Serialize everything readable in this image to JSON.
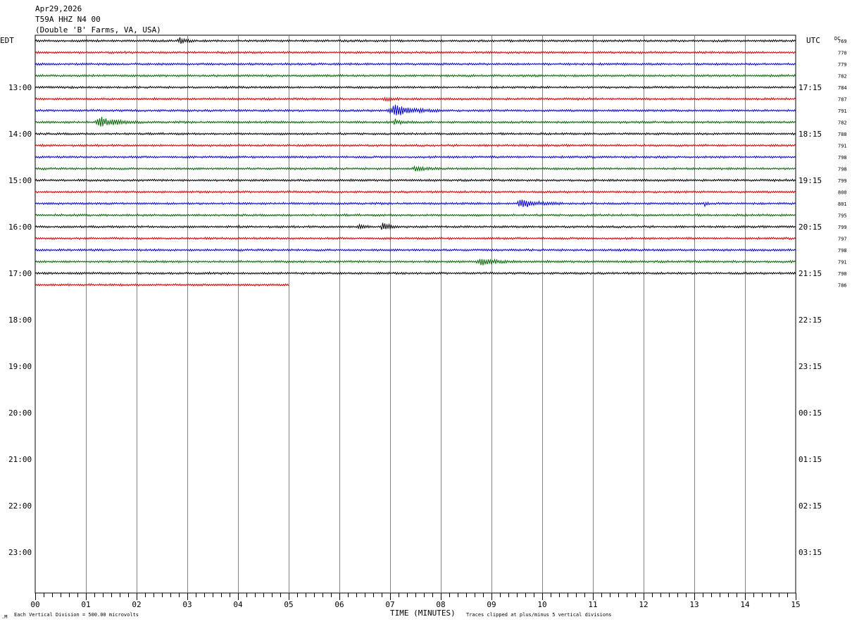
{
  "header": {
    "date": "Apr29,2026",
    "station": "T59A HHZ N4 00",
    "location": "(Double 'B' Farms, VA, USA)"
  },
  "labels": {
    "left_zone": "EDT",
    "right_zone": "UTC",
    "dc_header": "DC",
    "x_title": "TIME (MINUTES)",
    "scale_note": "Each Vertical Division =  500.00 microvolts",
    "clip_note": "Traces clipped at plus/minus 5 vertical divisions"
  },
  "colors": {
    "trace_cycle": [
      "#000000",
      "#cc0000",
      "#0000cc",
      "#006600"
    ],
    "grid": "#808080",
    "frame": "#000000"
  },
  "chart_data": {
    "type": "line",
    "description_kind": "helicorder",
    "minutes_per_line": 15,
    "x_ticks": [
      "00",
      "01",
      "02",
      "03",
      "04",
      "05",
      "06",
      "07",
      "08",
      "09",
      "10",
      "11",
      "12",
      "13",
      "14",
      "15"
    ],
    "xlim": [
      0,
      15
    ],
    "left_hour_labels": [
      "13:00",
      "14:00",
      "15:00",
      "16:00",
      "17:00",
      "18:00",
      "19:00",
      "20:00",
      "21:00",
      "22:00",
      "23:00"
    ],
    "right_hour_labels": [
      "17:15",
      "18:15",
      "19:15",
      "20:15",
      "21:15",
      "22:15",
      "23:15",
      "00:15",
      "01:15",
      "02:15",
      "03:15"
    ],
    "total_rows": 48,
    "traces": [
      {
        "row": 0,
        "dc": "769",
        "end_minute": 15,
        "events": [
          {
            "minute": 2.85,
            "amplitude": 2.2,
            "duration": 0.3
          }
        ]
      },
      {
        "row": 1,
        "dc": "770",
        "end_minute": 15,
        "events": []
      },
      {
        "row": 2,
        "dc": "779",
        "end_minute": 15,
        "events": []
      },
      {
        "row": 3,
        "dc": "782",
        "end_minute": 15,
        "events": []
      },
      {
        "row": 4,
        "dc": "784",
        "end_minute": 15,
        "events": []
      },
      {
        "row": 5,
        "dc": "787",
        "end_minute": 15,
        "events": [
          {
            "minute": 6.9,
            "amplitude": 1.5,
            "duration": 0.3
          }
        ]
      },
      {
        "row": 6,
        "dc": "791",
        "end_minute": 15,
        "events": [
          {
            "minute": 7.1,
            "amplitude": 3.5,
            "duration": 1.0
          }
        ]
      },
      {
        "row": 7,
        "dc": "782",
        "end_minute": 15,
        "events": [
          {
            "minute": 1.3,
            "amplitude": 3.2,
            "duration": 0.8
          },
          {
            "minute": 7.1,
            "amplitude": 1.5,
            "duration": 0.4
          }
        ]
      },
      {
        "row": 8,
        "dc": "788",
        "end_minute": 15,
        "events": []
      },
      {
        "row": 9,
        "dc": "791",
        "end_minute": 15,
        "events": []
      },
      {
        "row": 10,
        "dc": "798",
        "end_minute": 15,
        "events": []
      },
      {
        "row": 11,
        "dc": "798",
        "end_minute": 15,
        "events": [
          {
            "minute": 7.5,
            "amplitude": 1.2,
            "duration": 0.5
          }
        ]
      },
      {
        "row": 12,
        "dc": "799",
        "end_minute": 15,
        "events": []
      },
      {
        "row": 13,
        "dc": "800",
        "end_minute": 15,
        "events": []
      },
      {
        "row": 14,
        "dc": "801",
        "end_minute": 15,
        "events": [
          {
            "minute": 9.6,
            "amplitude": 2.8,
            "duration": 0.8
          },
          {
            "minute": 13.2,
            "amplitude": 2.0,
            "duration": 0.1
          }
        ]
      },
      {
        "row": 15,
        "dc": "795",
        "end_minute": 15,
        "events": []
      },
      {
        "row": 16,
        "dc": "799",
        "end_minute": 15,
        "events": [
          {
            "minute": 6.4,
            "amplitude": 1.6,
            "duration": 0.3
          },
          {
            "minute": 6.85,
            "amplitude": 2.8,
            "duration": 0.3
          }
        ]
      },
      {
        "row": 17,
        "dc": "797",
        "end_minute": 15,
        "events": []
      },
      {
        "row": 18,
        "dc": "798",
        "end_minute": 15,
        "events": []
      },
      {
        "row": 19,
        "dc": "791",
        "end_minute": 15,
        "events": [
          {
            "minute": 8.8,
            "amplitude": 2.0,
            "duration": 0.8
          }
        ]
      },
      {
        "row": 20,
        "dc": "790",
        "end_minute": 15,
        "events": []
      },
      {
        "row": 21,
        "dc": "786",
        "end_minute": 5,
        "events": []
      }
    ]
  }
}
